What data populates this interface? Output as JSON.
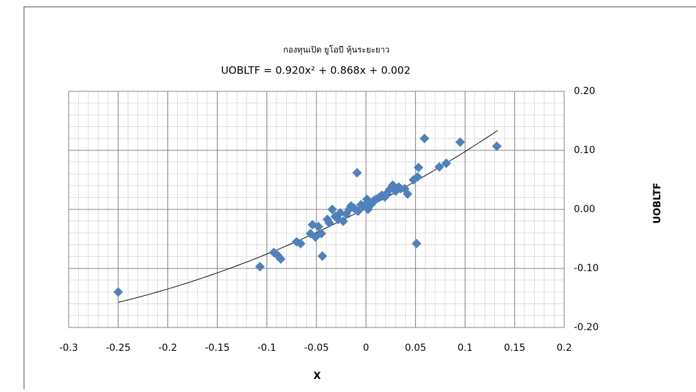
{
  "chart_data": {
    "type": "scatter",
    "title": "กองทุนเปิด ยูโอบี หุ้นระยะยาว",
    "x_label": "X",
    "y_label": "UOBLTF",
    "trendline": {
      "label": "UOBLTF = 0.920x² + 0.868x + 0.002",
      "coefficients": [
        0.92,
        0.868,
        0.002
      ],
      "xrange": [
        -0.25,
        0.133
      ],
      "color": "#000000"
    },
    "series": [
      {
        "name": "UOBLTF",
        "color": "#4f81bd",
        "x": [
          -0.25,
          -0.107,
          -0.093,
          -0.089,
          -0.086,
          -0.07,
          -0.066,
          -0.056,
          -0.054,
          -0.051,
          -0.048,
          -0.045,
          -0.044,
          -0.039,
          -0.037,
          -0.034,
          -0.031,
          -0.028,
          -0.026,
          -0.023,
          -0.02,
          -0.017,
          -0.015,
          -0.012,
          -0.009,
          -0.008,
          -0.005,
          -0.002,
          0.001,
          0.002,
          0.005,
          0.008,
          0.01,
          0.013,
          0.016,
          0.019,
          0.021,
          0.024,
          0.027,
          0.03,
          0.033,
          0.035,
          0.039,
          0.042,
          0.048,
          0.051,
          0.053,
          0.059,
          0.052,
          0.074,
          0.081,
          0.095,
          0.132
        ],
        "values": [
          -0.14,
          -0.097,
          -0.073,
          -0.078,
          -0.084,
          -0.055,
          -0.058,
          -0.041,
          -0.026,
          -0.047,
          -0.029,
          -0.041,
          -0.079,
          -0.017,
          -0.023,
          0,
          -0.012,
          -0.017,
          -0.006,
          -0.02,
          -0.008,
          0,
          0.006,
          0.002,
          0.062,
          -0.003,
          0.008,
          0.006,
          0.017,
          0,
          0.008,
          0.015,
          0.017,
          0.02,
          0.024,
          0.021,
          0.027,
          0.034,
          0.041,
          0.031,
          0.038,
          0.035,
          0.035,
          0.026,
          0.05,
          -0.058,
          0.071,
          0.12,
          0.055,
          0.072,
          0.078,
          0.114,
          0.107
        ]
      }
    ],
    "xlim": [
      -0.3,
      0.2
    ],
    "xticks": [
      -0.3,
      -0.25,
      -0.2,
      -0.15,
      -0.1,
      -0.05,
      0,
      0.05,
      0.1,
      0.15,
      0.2
    ],
    "ylim": [
      -0.2,
      0.2
    ],
    "yticks": [
      {
        "value": 0.2,
        "label": "0.20"
      },
      {
        "value": 0.1,
        "label": "0.10"
      },
      {
        "value": 0,
        "label": "0.00"
      },
      {
        "value": -0.1,
        "label": "-0.10"
      },
      {
        "value": -0.2,
        "label": "-0.20"
      }
    ],
    "grid": true,
    "y_axis_side": "right"
  }
}
